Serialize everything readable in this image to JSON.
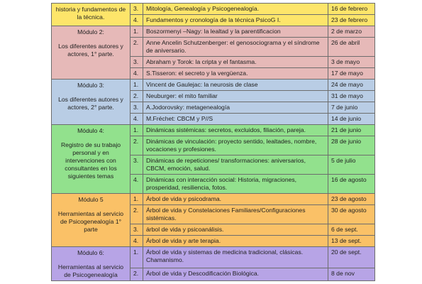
{
  "modules": [
    {
      "title": null,
      "subtitle": "historia y fundamentos de la técnica.",
      "color": "#fde56a",
      "rows": [
        {
          "num": "3.",
          "topic": "Mitología, Genealogía y Psicogenealogía.",
          "date": "16 de febrero"
        },
        {
          "num": "4.",
          "topic": "Fundamentos y cronología de la técnica PsicoG I.",
          "date": "23 de febrero"
        }
      ]
    },
    {
      "title": "Módulo 2:",
      "subtitle": "Los diferentes autores y actores, 1° parte.",
      "color": "#e6b9b8",
      "rows": [
        {
          "num": "1.",
          "topic": "Boszormenyi –Nagy: la lealtad y la parentificacion",
          "date": "2 de marzo"
        },
        {
          "num": "2.",
          "topic": "Anne Ancelin Schutzenberger: el genosociograma y el síndrome de aniversario.",
          "date": "26 de abril"
        },
        {
          "num": "3.",
          "topic": "Abraham y Torok: la cripta y el fantasma.",
          "date": "3 de mayo"
        },
        {
          "num": "4.",
          "topic": "S.Tisseron: el secreto y la vergüenza.",
          "date": "17 de mayo"
        }
      ]
    },
    {
      "title": "Módulo 3:",
      "subtitle": "Los diferentes autores y actores, 2° parte.",
      "color": "#b9cde5",
      "rows": [
        {
          "num": "1.",
          "topic": "Vincent de Gaulejac: la neurosis de clase",
          "date": "24 de mayo"
        },
        {
          "num": "2.",
          "topic": "Neuburger: el mito familiar",
          "date": "31 de mayo"
        },
        {
          "num": "3.",
          "topic": "A.Jodorovsky: metagenealogía",
          "date": "7 de junio"
        },
        {
          "num": "4.",
          "topic": "M.Fréchet: CBCM y P//S",
          "date": "14 de junio"
        }
      ]
    },
    {
      "title": "Módulo 4:",
      "subtitle": "Registro de su trabajo personal y en intervenciones con consultantes en los siguientes temas",
      "color": "#92e18d",
      "rows": [
        {
          "num": "1.",
          "topic": "Dinámicas sistémicas: secretos, excluidos, filiación, pareja.",
          "date": "21 de junio"
        },
        {
          "num": "2.",
          "topic": "Dinámicas de vinculación: proyecto sentido, lealtades, nombre, vocaciones y profesiones.",
          "date": "28 de junio"
        },
        {
          "num": "3.",
          "topic": "Dinámicas de repeticiones/ transformaciones: aniversarios, CBCM, emoción, salud.",
          "date": "5 de julio"
        },
        {
          "num": "4.",
          "topic": "Dinámicas con interacción social: Historia, migraciones, prosperidad, resiliencia, fotos.",
          "date": "16 de agosto"
        }
      ]
    },
    {
      "title": "Módulo 5",
      "subtitle": "Herramientas al servicio de Psicogenealogía 1° parte",
      "color": "#fac167",
      "rows": [
        {
          "num": "1.",
          "topic": "Árbol de vida y psicodrama.",
          "date": "23 de agosto"
        },
        {
          "num": "2.",
          "topic": "Árbol de vida y Constelaciones Familiares/Configuraciones sistémicas.",
          "date": "30 de agosto"
        },
        {
          "num": "3.",
          "topic": "árbol de vida y psicoanálisis.",
          "date": "6 de sept."
        },
        {
          "num": "4.",
          "topic": "Árbol de vida y arte terapia.",
          "date": "13 de sept."
        }
      ]
    },
    {
      "title": "Módulo 6:",
      "subtitle": "Herramientas al servicio de Psicogenealogía",
      "color": "#b7a4e6",
      "rows": [
        {
          "num": "1.",
          "topic": "Árbol de vida y sistemas de medicina tradicional, clásicas. Chamanismo.",
          "date": "20 de sept."
        },
        {
          "num": "2.",
          "topic": "Árbol de vida y Descodificación Biológica.",
          "date": "8 de nov"
        }
      ]
    }
  ]
}
